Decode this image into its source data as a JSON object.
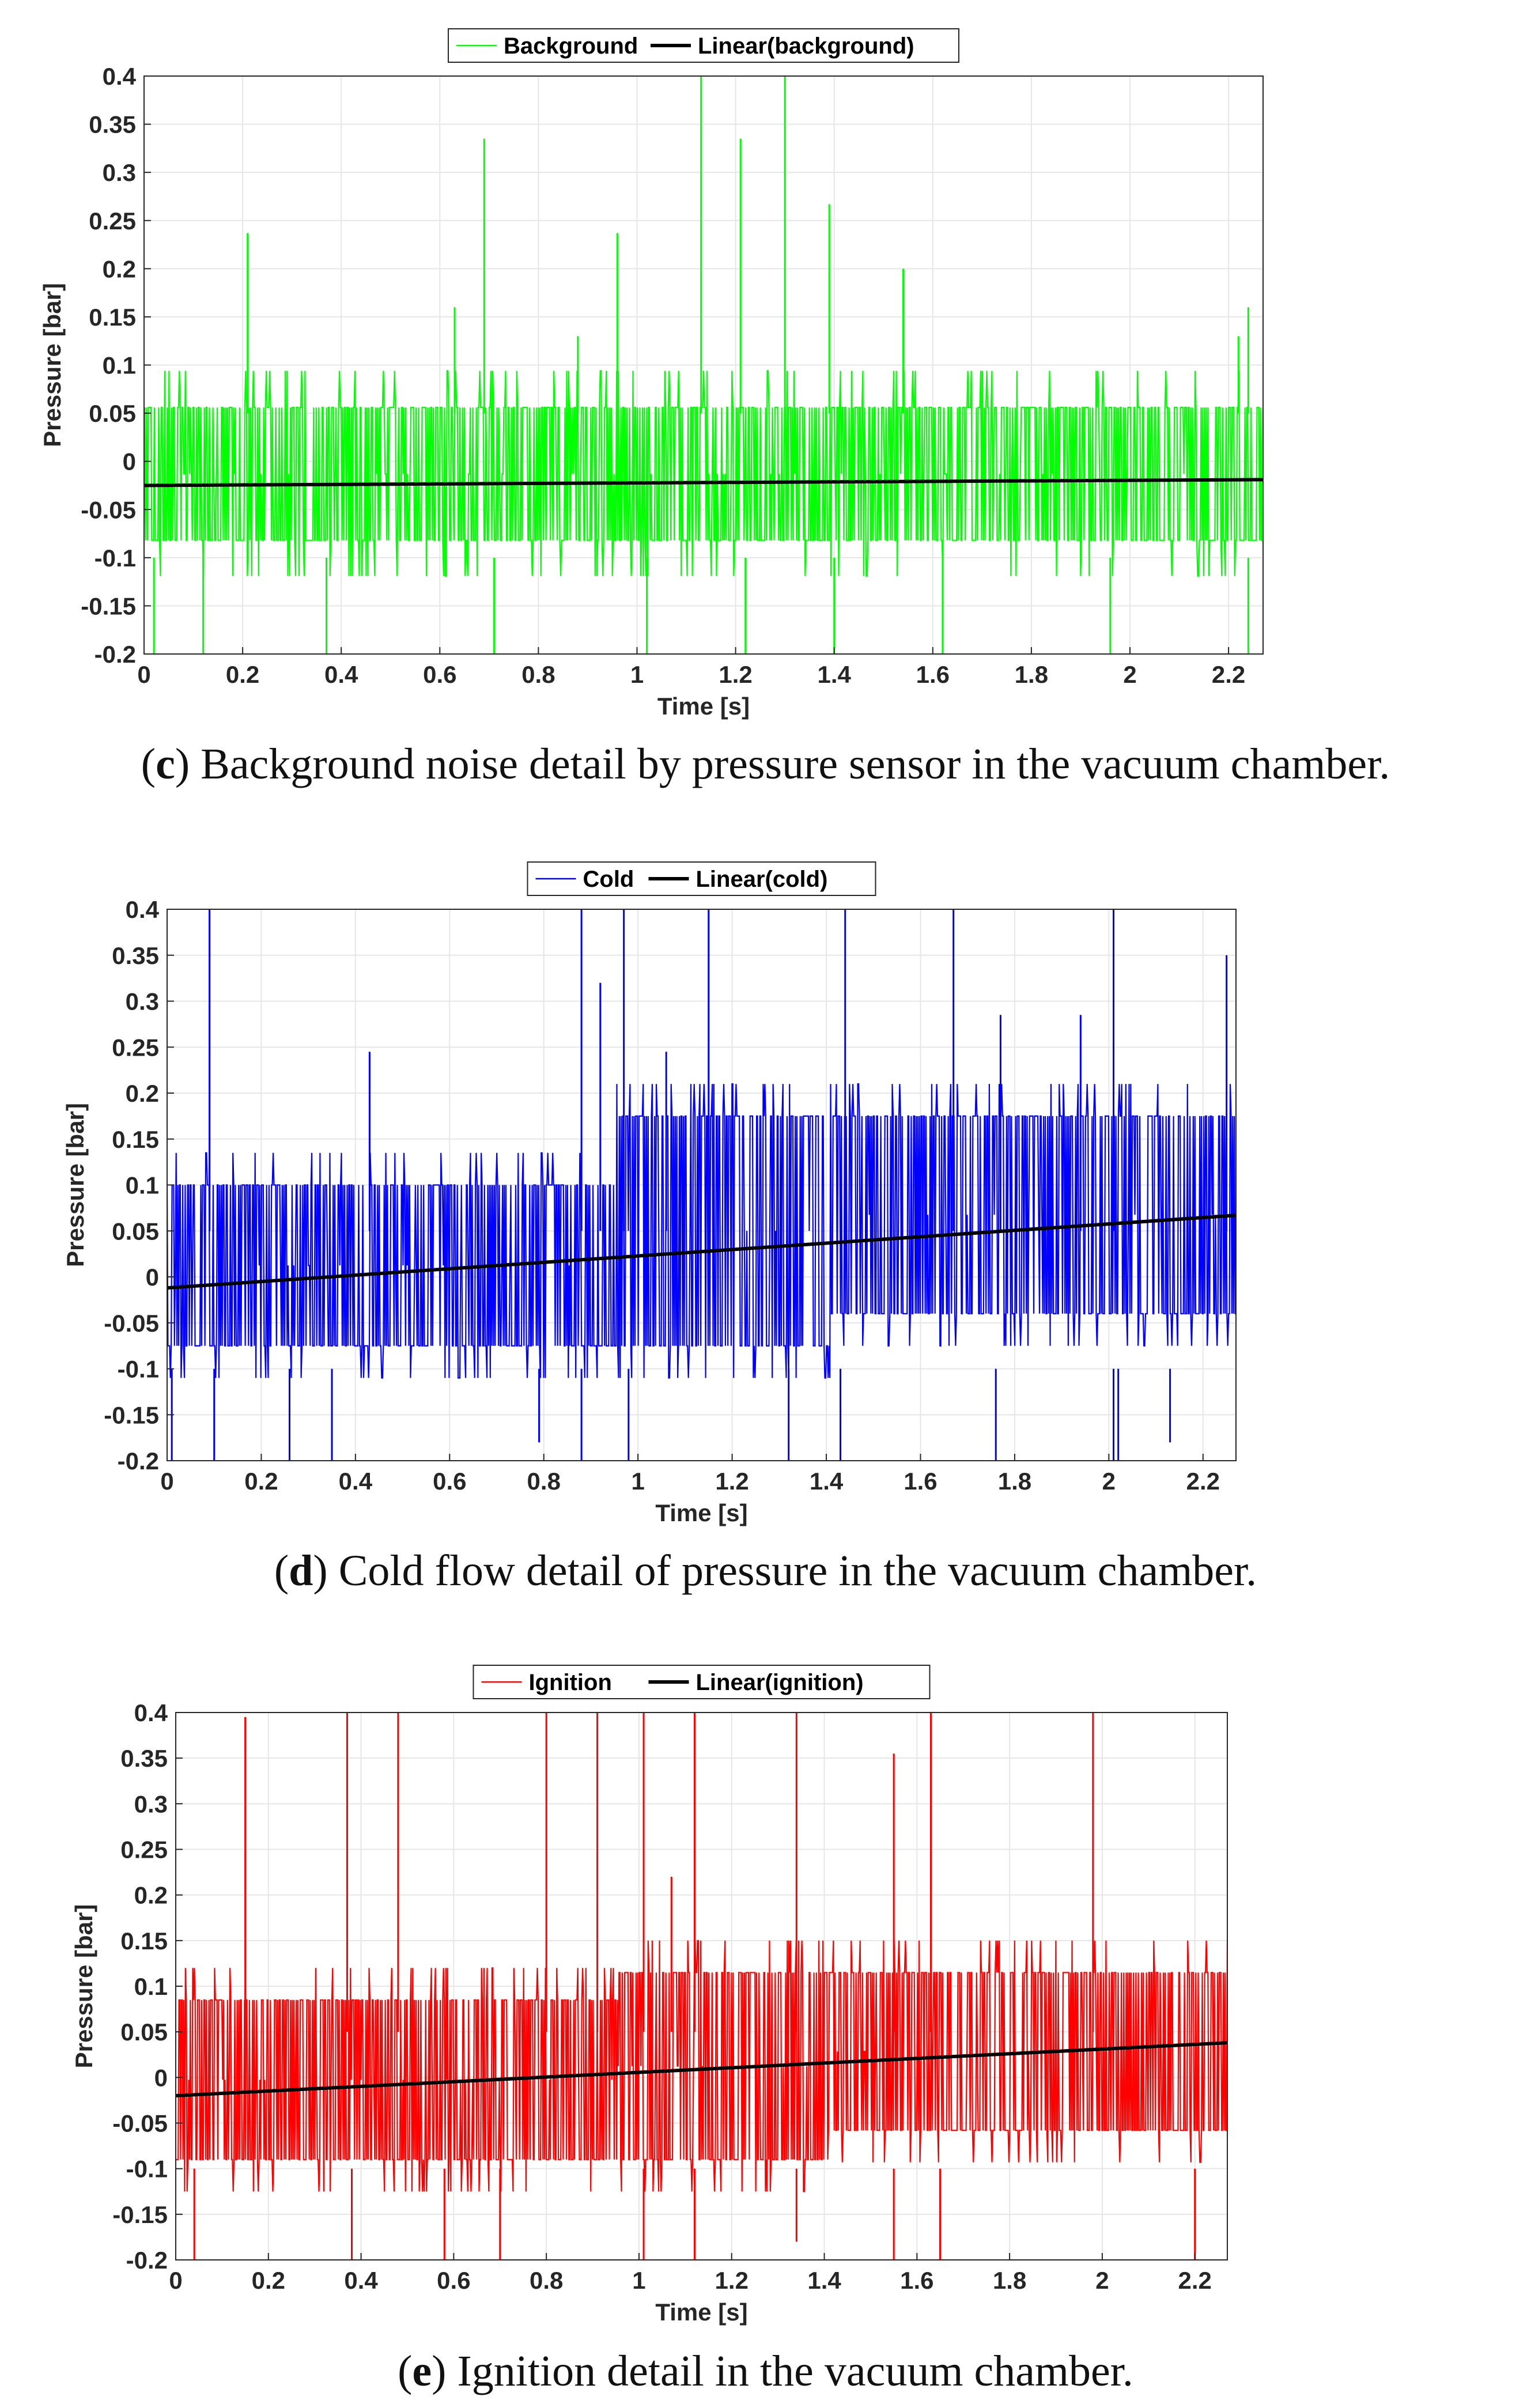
{
  "chart_data": [
    {
      "panel": "c",
      "type": "line",
      "caption_letter": "c",
      "caption_text": "Background noise detail by pressure sensor in the vacuum chamber.",
      "xlabel": "Time [s]",
      "ylabel": "Pressure [bar]",
      "xlim": [
        0,
        2.27
      ],
      "ylim": [
        -0.2,
        0.4
      ],
      "xticks": [
        "0",
        "0.2",
        "0.4",
        "0.6",
        "0.8",
        "1",
        "1.2",
        "1.4",
        "1.6",
        "1.8",
        "2",
        "2.2"
      ],
      "yticks": [
        "-0.2",
        "-0.15",
        "-0.1",
        "-0.05",
        "0",
        "0.05",
        "0.1",
        "0.15",
        "0.2",
        "0.25",
        "0.3",
        "0.35",
        "0.4"
      ],
      "grid": true,
      "legend_position": "top",
      "series": [
        {
          "name": "Background",
          "color": "#00ff00",
          "noise": {
            "high": 0.056,
            "mid_high": 0.094,
            "low": -0.082,
            "mid_low": -0.119,
            "spike_floor": -0.2
          },
          "spikes": [
            {
              "x": 0.21,
              "y": 0.237
            },
            {
              "x": 0.63,
              "y": 0.16
            },
            {
              "x": 0.69,
              "y": 0.335
            },
            {
              "x": 0.88,
              "y": 0.13
            },
            {
              "x": 0.96,
              "y": 0.237
            },
            {
              "x": 1.13,
              "y": 0.4
            },
            {
              "x": 1.21,
              "y": 0.335
            },
            {
              "x": 1.3,
              "y": 0.4
            },
            {
              "x": 1.39,
              "y": 0.267
            },
            {
              "x": 1.54,
              "y": 0.2
            },
            {
              "x": 2.22,
              "y": 0.13
            },
            {
              "x": 2.24,
              "y": 0.16
            },
            {
              "x": 0.02,
              "y": -0.2
            },
            {
              "x": 0.12,
              "y": -0.2
            },
            {
              "x": 0.37,
              "y": -0.2
            },
            {
              "x": 0.71,
              "y": -0.2
            },
            {
              "x": 1.02,
              "y": -0.2
            },
            {
              "x": 1.22,
              "y": -0.2
            },
            {
              "x": 1.4,
              "y": -0.2
            },
            {
              "x": 1.62,
              "y": -0.2
            },
            {
              "x": 1.96,
              "y": -0.2
            },
            {
              "x": 2.24,
              "y": -0.2
            }
          ]
        },
        {
          "name": "Linear(background)",
          "color": "#000000",
          "line": {
            "x": [
              0,
              2.27
            ],
            "y": [
              -0.025,
              -0.019
            ]
          }
        }
      ]
    },
    {
      "panel": "d",
      "type": "line",
      "caption_letter": "d",
      "caption_text": "Cold flow detail of pressure in the vacuum chamber.",
      "xlabel": "Time [s]",
      "ylabel": "Pressure [bar]",
      "xlim": [
        0,
        2.27
      ],
      "ylim": [
        -0.2,
        0.4
      ],
      "xticks": [
        "0",
        "0.2",
        "0.4",
        "0.6",
        "0.8",
        "1",
        "1.2",
        "1.4",
        "1.6",
        "1.8",
        "2",
        "2.2"
      ],
      "yticks": [
        "-0.2",
        "-0.15",
        "-0.1",
        "-0.05",
        "0",
        "0.05",
        "0.1",
        "0.15",
        "0.2",
        "0.25",
        "0.3",
        "0.35",
        "0.4"
      ],
      "grid": true,
      "legend_position": "top",
      "series": [
        {
          "name": "Cold",
          "color": "#0000ff",
          "noise": {
            "high_start": 0.1,
            "high_end": 0.175,
            "low_start": -0.075,
            "low_end": -0.04,
            "spike_floor": -0.2
          },
          "spikes": [
            {
              "x": 0.09,
              "y": 0.4
            },
            {
              "x": 0.43,
              "y": 0.245
            },
            {
              "x": 0.88,
              "y": 0.4
            },
            {
              "x": 0.92,
              "y": 0.32
            },
            {
              "x": 0.97,
              "y": 0.4
            },
            {
              "x": 1.06,
              "y": 0.245
            },
            {
              "x": 1.15,
              "y": 0.4
            },
            {
              "x": 1.44,
              "y": 0.4
            },
            {
              "x": 1.67,
              "y": 0.4
            },
            {
              "x": 1.77,
              "y": 0.285
            },
            {
              "x": 1.94,
              "y": 0.285
            },
            {
              "x": 2.01,
              "y": 0.4
            },
            {
              "x": 2.25,
              "y": 0.35
            },
            {
              "x": 0.01,
              "y": -0.2
            },
            {
              "x": 0.1,
              "y": -0.2
            },
            {
              "x": 0.26,
              "y": -0.2
            },
            {
              "x": 0.35,
              "y": -0.2
            },
            {
              "x": 0.79,
              "y": -0.18
            },
            {
              "x": 0.88,
              "y": -0.2
            },
            {
              "x": 0.98,
              "y": -0.2
            },
            {
              "x": 1.32,
              "y": -0.2
            },
            {
              "x": 1.43,
              "y": -0.2
            },
            {
              "x": 1.76,
              "y": -0.2
            },
            {
              "x": 2.01,
              "y": -0.2
            },
            {
              "x": 2.02,
              "y": -0.2
            },
            {
              "x": 2.13,
              "y": -0.18
            }
          ]
        },
        {
          "name": "Linear(cold)",
          "color": "#000000",
          "line": {
            "x": [
              0,
              2.27
            ],
            "y": [
              -0.012,
              0.067
            ]
          }
        }
      ]
    },
    {
      "panel": "e",
      "type": "line",
      "caption_letter": "e",
      "caption_text": "Ignition detail in the vacuum chamber.",
      "xlabel": "Time [s]",
      "ylabel": "Pressure [bar]",
      "xlim": [
        0,
        2.27
      ],
      "ylim": [
        -0.2,
        0.4
      ],
      "xticks": [
        "0",
        "0.2",
        "0.4",
        "0.6",
        "0.8",
        "1",
        "1.2",
        "1.4",
        "1.6",
        "1.8",
        "2",
        "2.2"
      ],
      "yticks": [
        "-0.2",
        "-0.15",
        "-0.1",
        "-0.05",
        "0",
        "0.05",
        "0.1",
        "0.15",
        "0.2",
        "0.25",
        "0.3",
        "0.35",
        "0.4"
      ],
      "grid": true,
      "legend_position": "top",
      "series": [
        {
          "name": "Ignition",
          "color": "#ff0000",
          "noise": {
            "high_start": 0.085,
            "high_end": 0.115,
            "low_start": -0.09,
            "low_end": -0.058,
            "spike_floor": -0.2
          },
          "spikes": [
            {
              "x": 0.15,
              "y": 0.395
            },
            {
              "x": 0.37,
              "y": 0.4
            },
            {
              "x": 0.48,
              "y": 0.4
            },
            {
              "x": 0.8,
              "y": 0.4
            },
            {
              "x": 0.91,
              "y": 0.4
            },
            {
              "x": 1.01,
              "y": 0.4
            },
            {
              "x": 1.07,
              "y": 0.22
            },
            {
              "x": 1.12,
              "y": 0.4
            },
            {
              "x": 1.34,
              "y": 0.4
            },
            {
              "x": 1.55,
              "y": 0.355
            },
            {
              "x": 1.63,
              "y": 0.4
            },
            {
              "x": 1.98,
              "y": 0.4
            },
            {
              "x": 0.04,
              "y": -0.2
            },
            {
              "x": 0.38,
              "y": -0.2
            },
            {
              "x": 0.58,
              "y": -0.2
            },
            {
              "x": 0.7,
              "y": -0.2
            },
            {
              "x": 1.01,
              "y": -0.2
            },
            {
              "x": 1.12,
              "y": -0.2
            },
            {
              "x": 1.34,
              "y": -0.18
            },
            {
              "x": 1.55,
              "y": -0.2
            },
            {
              "x": 1.65,
              "y": -0.2
            },
            {
              "x": 2.2,
              "y": -0.2
            }
          ]
        },
        {
          "name": "Linear(ignition)",
          "color": "#000000",
          "line": {
            "x": [
              0,
              2.27
            ],
            "y": [
              -0.02,
              0.038
            ]
          }
        }
      ]
    }
  ]
}
